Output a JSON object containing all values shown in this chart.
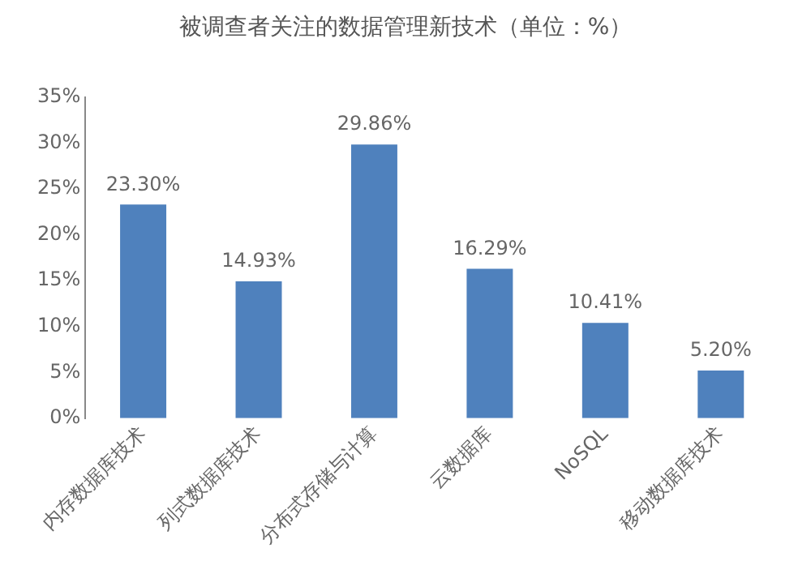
{
  "chart_data": {
    "type": "bar",
    "title": "被调查者关注的数据管理新技术（单位：%）",
    "categories": [
      "内存数据库技术",
      "列式数据库技术",
      "分布式存储与计算",
      "云数据库",
      "NoSQL",
      "移动数据库技术"
    ],
    "values": [
      23.3,
      14.93,
      29.86,
      16.29,
      10.41,
      5.2
    ],
    "value_labels": [
      "23.30%",
      "14.93%",
      "29.86%",
      "16.29%",
      "10.41%",
      "5.20%"
    ],
    "color": "#4f81bd",
    "ylim": [
      0,
      35
    ],
    "yticks": [
      {
        "value": 0,
        "label": "0%"
      },
      {
        "value": 5,
        "label": "5%"
      },
      {
        "value": 10,
        "label": "10%"
      },
      {
        "value": 15,
        "label": "15%"
      },
      {
        "value": 20,
        "label": "20%"
      },
      {
        "value": 25,
        "label": "25%"
      },
      {
        "value": 30,
        "label": "30%"
      },
      {
        "value": 35,
        "label": "35%"
      }
    ],
    "grid": false,
    "legend": false
  }
}
